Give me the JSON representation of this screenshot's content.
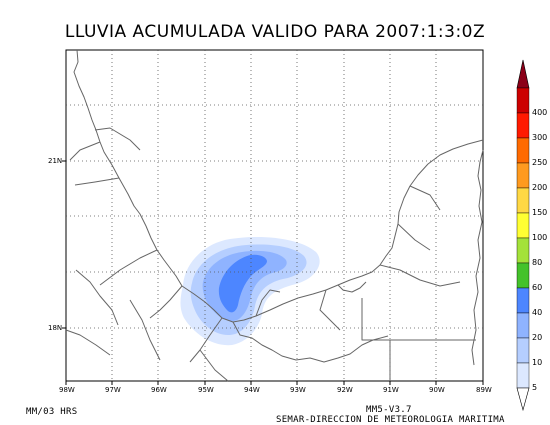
{
  "title": "LLUVIA ACUMULADA VALIDO PARA 2007:1:3:0Z",
  "footer": {
    "left": "MM/03 HRS",
    "model": "MM5-V3.7",
    "agency": "SEMAR-DIRECCION DE METEOROLOGIA MARITIMA"
  },
  "map": {
    "lon_ticks": [
      "98W",
      "97W",
      "96W",
      "95W",
      "94W",
      "93W",
      "92W",
      "91W",
      "90W",
      "89W"
    ],
    "lat_ticks": [
      "21N",
      "18N"
    ],
    "grid": true,
    "colors": {
      "land_border": "#666666",
      "grid": "#555555"
    }
  },
  "colorbar": {
    "levels": [
      "5",
      "10",
      "20",
      "40",
      "60",
      "80",
      "100",
      "150",
      "200",
      "250",
      "300",
      "400"
    ],
    "colors": [
      "#dce8ff",
      "#b5ceff",
      "#8fb3ff",
      "#4d86ff",
      "#44c22b",
      "#a4e23a",
      "#ffff33",
      "#ffd844",
      "#ff9a1f",
      "#ff6a00",
      "#ff1a00",
      "#cc0000",
      "#8b0018"
    ]
  },
  "rain": {
    "max_level": "40",
    "cells_in_mm": [
      "5-10",
      "10-20",
      "20-40"
    ]
  }
}
